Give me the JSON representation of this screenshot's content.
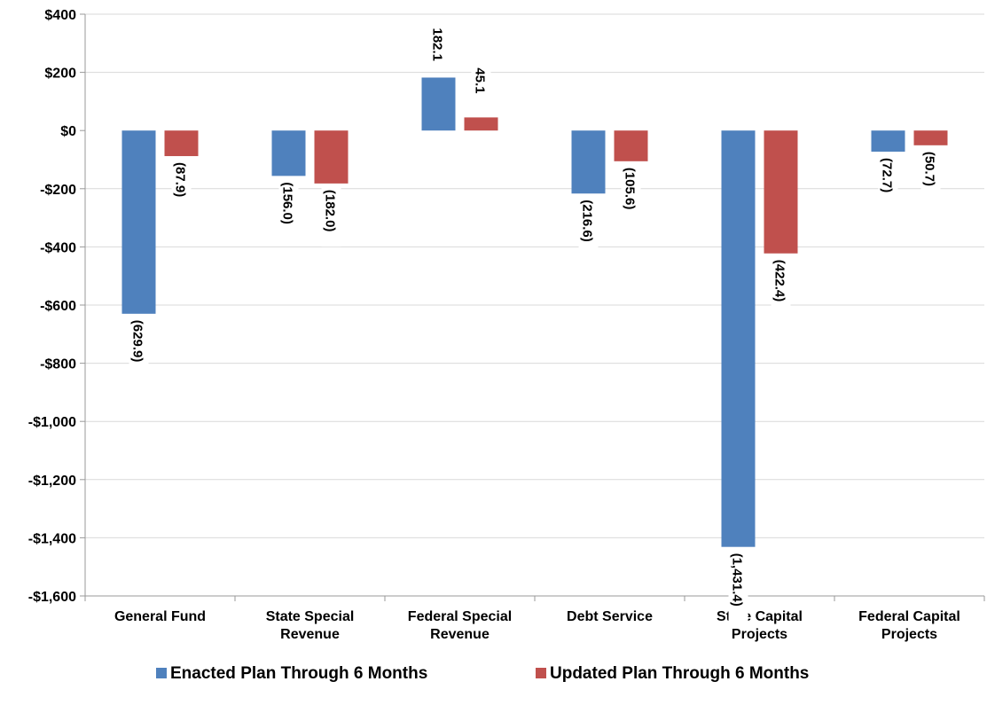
{
  "chart_data": {
    "type": "bar",
    "title": "",
    "xlabel": "",
    "ylabel": "",
    "categories": [
      [
        "General Fund"
      ],
      [
        "State Special",
        "Revenue"
      ],
      [
        "Federal Special",
        "Revenue"
      ],
      [
        "Debt Service"
      ],
      [
        "State Capital",
        "Projects"
      ],
      [
        "Federal Capital",
        "Projects"
      ]
    ],
    "series": [
      {
        "name": "Enacted Plan Through 6 Months",
        "color": "#4F81BD",
        "values": [
          -629.9,
          -156.0,
          182.1,
          -216.6,
          -1431.4,
          -72.7
        ],
        "labels": [
          "(629.9)",
          "(156.0)",
          "182.1",
          "(216.6)",
          "(1,431.4)",
          "(72.7)"
        ]
      },
      {
        "name": "Updated Plan Through 6 Months",
        "color": "#C0504D",
        "values": [
          -87.9,
          -182.0,
          45.1,
          -105.6,
          -422.4,
          -50.7
        ],
        "labels": [
          "(87.9)",
          "(182.0)",
          "45.1",
          "(105.6)",
          "(422.4)",
          "(50.7)"
        ]
      }
    ],
    "ylim": [
      -1600,
      400
    ],
    "yticks": [
      400,
      200,
      0,
      -200,
      -400,
      -600,
      -800,
      -1000,
      -1200,
      -1400,
      -1600
    ],
    "ytick_labels": [
      "$400",
      "$200",
      "$0",
      "-$200",
      "-$400",
      "-$600",
      "-$800",
      "-$1,000",
      "-$1,200",
      "-$1,400",
      "-$1,600"
    ],
    "grid": true,
    "legend_position": "bottom"
  }
}
